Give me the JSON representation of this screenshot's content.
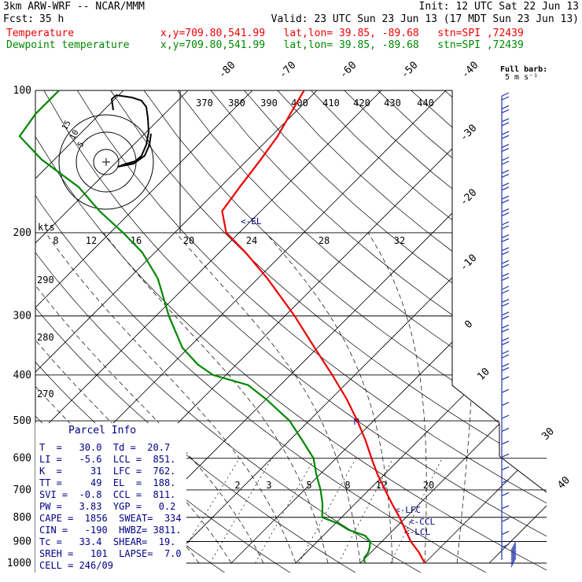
{
  "header": {
    "model": "3km ARW-WRF -- NCAR/MMM",
    "init": "Init: 12 UTC Sat 22 Jun 13",
    "fcst_label": "Fcst:",
    "fcst_value": "35 h",
    "valid": "Valid: 23 UTC Sun 23 Jun 13 (17 MDT Sun 23 Jun 13)",
    "line_temp": "Temperature",
    "line_dew": "Dewpoint temperature",
    "loc": "x,y=709.80,541.99   lat,lon= 39.85, -89.68   stn=SPI ,72439",
    "full_barb": "Full barb:",
    "full_barb_units": "5 m s⁻¹",
    "kts_label": "kts"
  },
  "colors": {
    "temperature": "#ee0000",
    "dewpoint": "#008800",
    "info": "#000088",
    "grid": "#000000"
  },
  "chart_data": {
    "type": "line",
    "title": "",
    "y_axis": "Pressure (hPa), log scale",
    "pressure_ticks": [
      100,
      200,
      300,
      400,
      500,
      600,
      700,
      800,
      900,
      1000
    ],
    "isotherm_labels_top": [
      "-80",
      "-70",
      "-60",
      "-50",
      "-40"
    ],
    "isotherm_labels_right": [
      "-30",
      "-20",
      "-10",
      "0",
      "10",
      "30",
      "40"
    ],
    "theta_labels": [
      "370",
      "380",
      "390",
      "400",
      "410",
      "420",
      "430",
      "440"
    ],
    "theta_left_labels": [
      "290",
      "280",
      "270"
    ],
    "mixing_ratio_labels": [
      "2",
      "3",
      "5",
      "8",
      "12",
      "20"
    ],
    "hodo_speed_labels": [
      "8",
      "12",
      "16",
      "20",
      "24",
      "28",
      "32"
    ],
    "hodo_ring_labels": [
      "5",
      "10",
      "15"
    ],
    "level_markers": [
      "<-EL",
      "<-LFC",
      "<-CCL",
      "<-LCL",
      "M"
    ],
    "series": [
      {
        "name": "Temperature",
        "pressure": [
          1000,
          950,
          900,
          850,
          800,
          750,
          700,
          650,
          600,
          550,
          500,
          450,
          400,
          350,
          300,
          250,
          220,
          200,
          180,
          160,
          140,
          125,
          112,
          100
        ],
        "values": [
          30,
          27.5,
          24.5,
          21.8,
          19.0,
          15.8,
          12.5,
          9.0,
          5.5,
          1.8,
          -2.5,
          -7.5,
          -13.5,
          -20.5,
          -28.5,
          -38.5,
          -46,
          -52,
          -56,
          -57,
          -58,
          -59,
          -60.5,
          -62
        ]
      },
      {
        "name": "Dewpoint temperature",
        "pressure": [
          1000,
          975,
          950,
          925,
          900,
          875,
          850,
          825,
          800,
          750,
          700,
          650,
          600,
          550,
          500,
          450,
          420,
          400,
          380,
          350,
          300,
          250,
          220,
          200,
          180,
          160,
          140,
          125,
          112,
          100
        ],
        "values": [
          20.7,
          19.8,
          19.6,
          19.0,
          18.2,
          16.5,
          13.0,
          10.5,
          7.0,
          5.0,
          2.5,
          -0.5,
          -3.5,
          -8.0,
          -13.0,
          -20.0,
          -25.0,
          -32.0,
          -36.0,
          -41.0,
          -48.0,
          -55.5,
          -62.0,
          -68.0,
          -75.0,
          -82.0,
          -92.0,
          -99.0,
          -100.0,
          -100.0
        ]
      }
    ]
  },
  "parcel_info": {
    "title": "Parcel Info",
    "rows": [
      "T  =   30.0  Td =  20.7",
      "LI =   -5.6  LCL =  851.",
      "K  =     31  LFC =  762.",
      "TT =     49  EL  =  188.",
      "SVI =  -0.8  CCL =  811.",
      "PW =   3.83  YGP =   0.2",
      "CAPE =  1856  SWEAT=  334",
      "CIN =   -190  HWBZ= 3811.",
      "Tc =   33.4  SHEAR=  19.",
      "SREH =   101  LAPSE=  7.0",
      "CELL = 246/09"
    ]
  }
}
